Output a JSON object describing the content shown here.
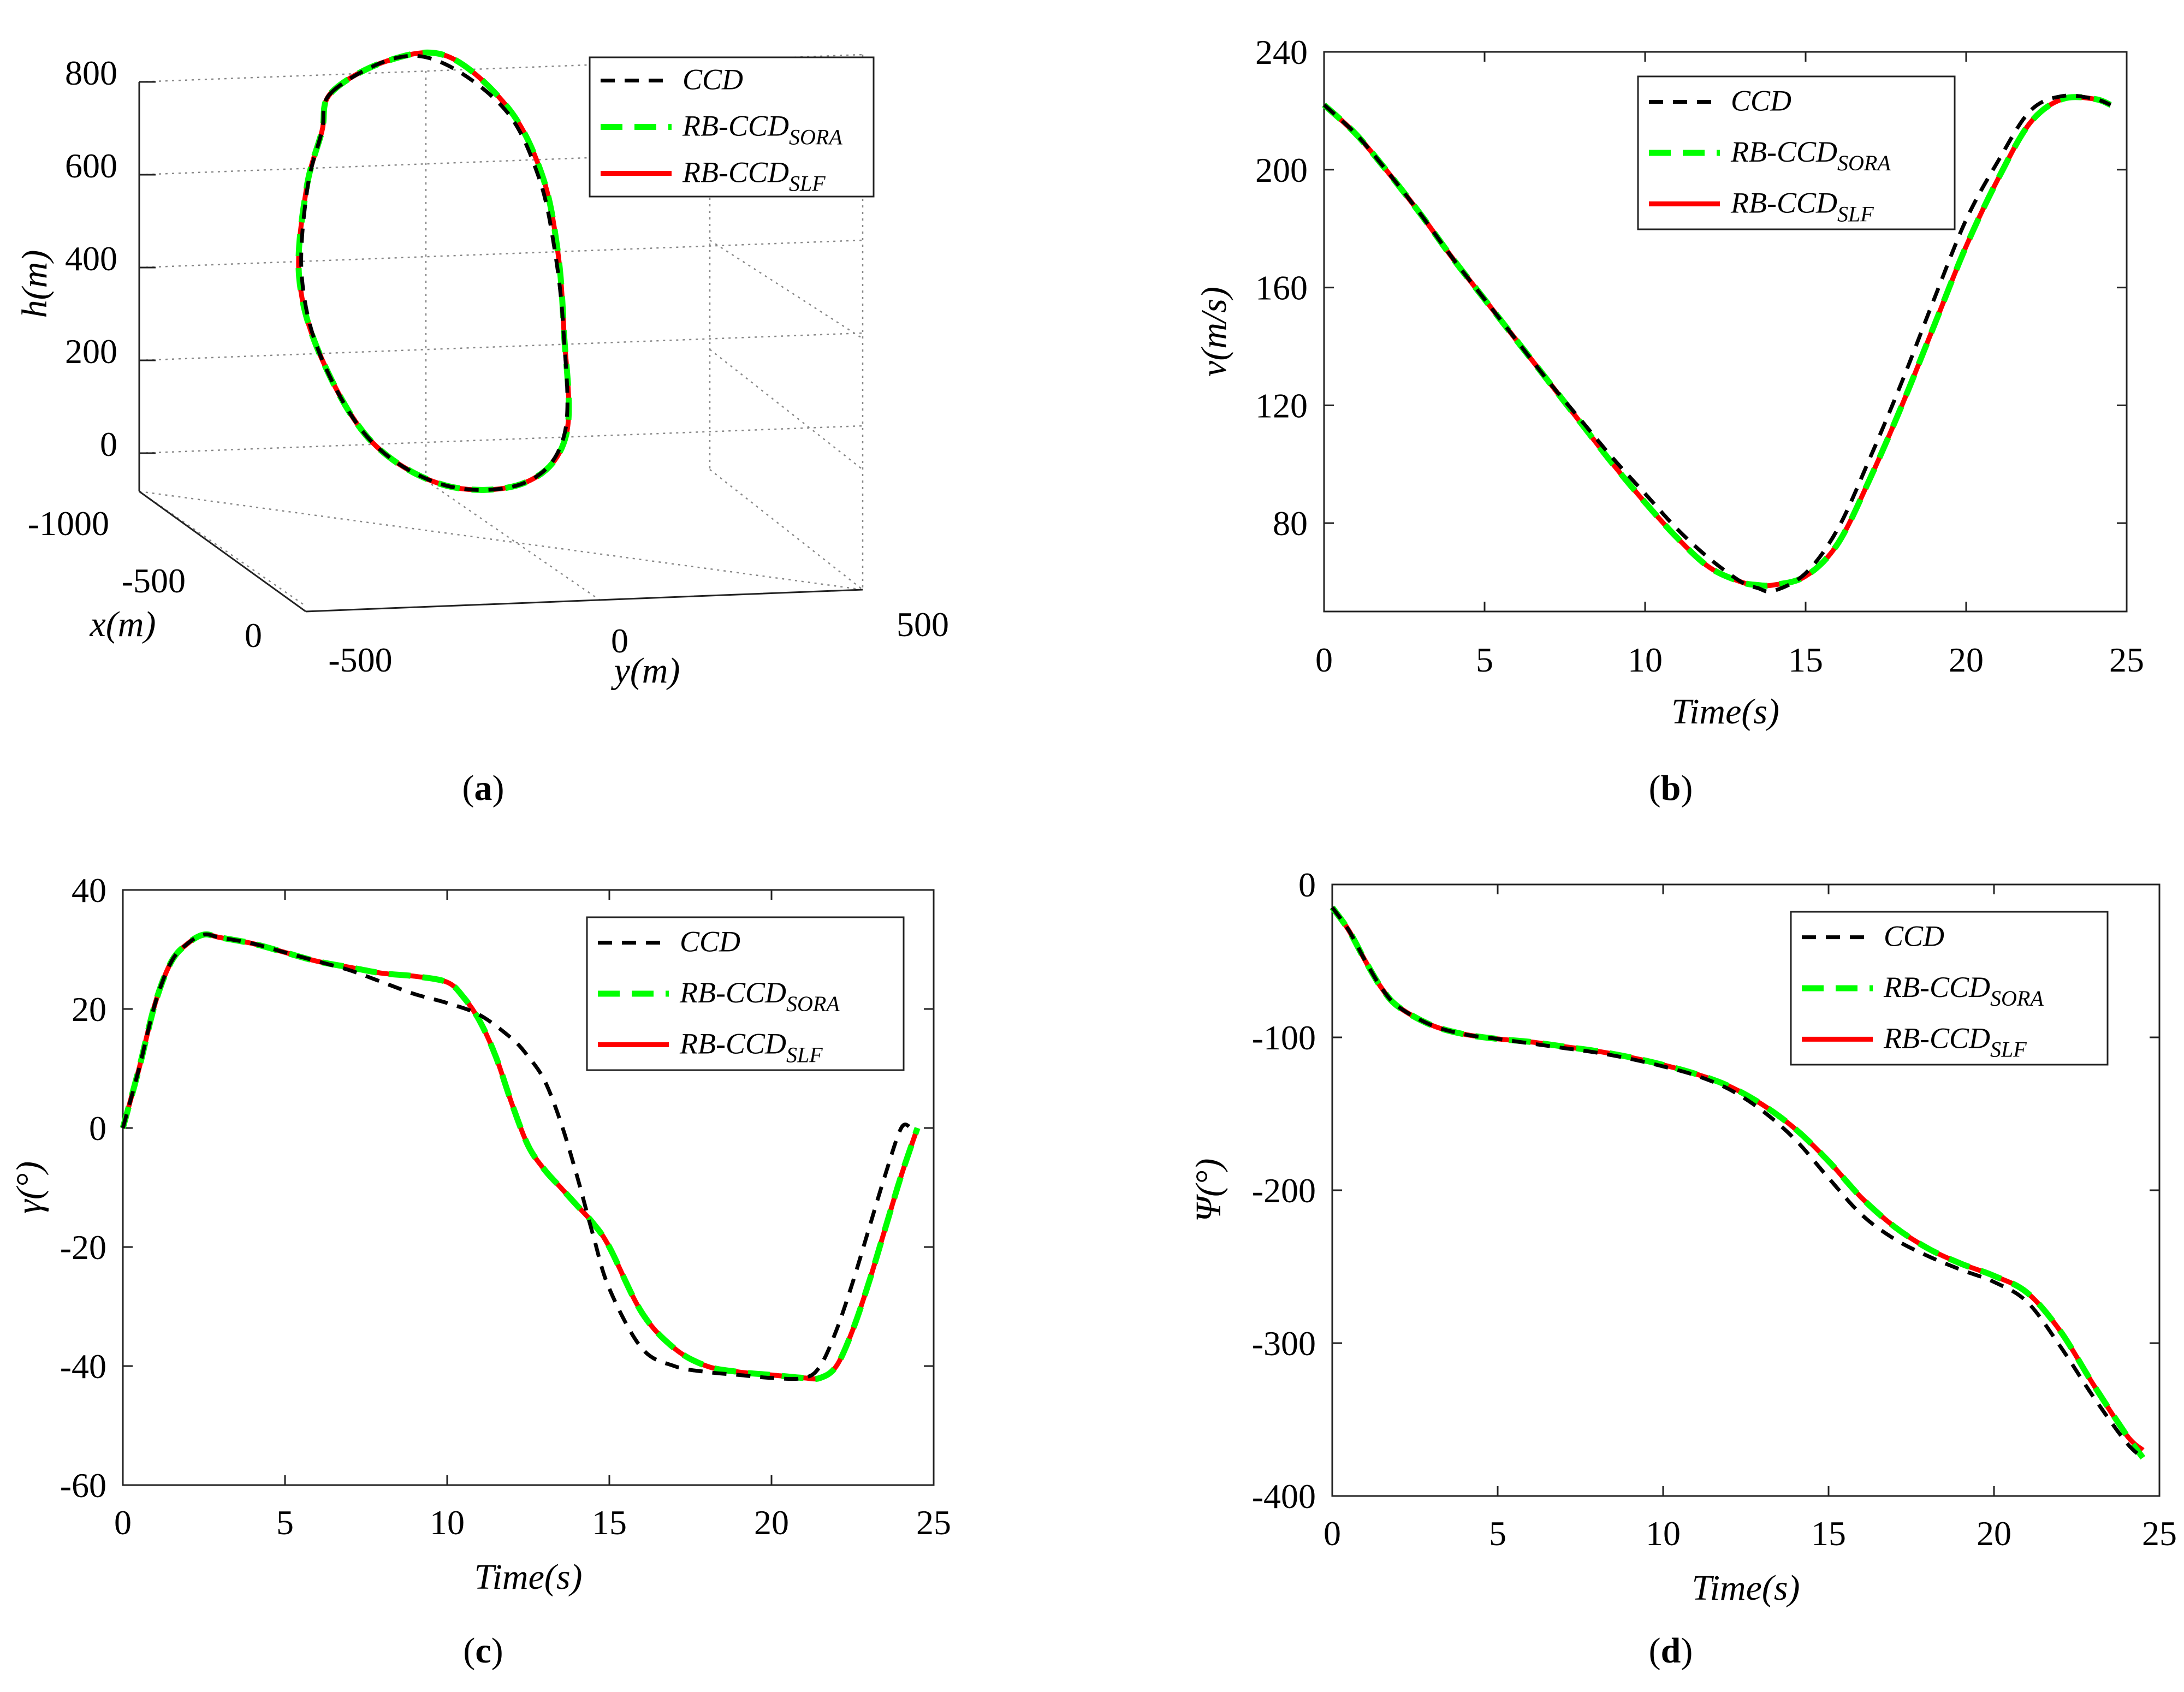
{
  "legend": {
    "ccd": "CCD",
    "sora_main": "RB-CCD",
    "sora_sub": "SORA",
    "slf_main": "RB-CCD",
    "slf_sub": "SLF"
  },
  "colors": {
    "ccd": "#000000",
    "sora": "#00ff00",
    "slf": "#ff0000"
  },
  "captions": {
    "a": "a",
    "b": "b",
    "c": "c",
    "d": "d"
  },
  "chart_data": [
    {
      "id": "a",
      "type": "line",
      "title": "",
      "projection": "3d",
      "xlabel": "x(m)",
      "ylabel": "y(m)",
      "zlabel": "h(m)",
      "x_ticks": [
        "-1000",
        "-500",
        "0"
      ],
      "y_ticks": [
        "-500",
        "0",
        "500"
      ],
      "z_ticks": [
        "800",
        "600",
        "400",
        "200",
        "0"
      ],
      "xlim": [
        -1000,
        0
      ],
      "ylim": [
        -500,
        500
      ],
      "zlim": [
        -100,
        800
      ],
      "series": [
        {
          "name": "CCD",
          "key": "ccd",
          "points": [
            [
              -310,
              -430,
              720
            ],
            [
              -420,
              -280,
              760
            ],
            [
              -470,
              -170,
              730
            ],
            [
              -560,
              -30,
              600
            ],
            [
              -660,
              60,
              430
            ],
            [
              -730,
              110,
              260
            ],
            [
              -740,
              130,
              80
            ],
            [
              -600,
              90,
              -110
            ],
            [
              -440,
              -30,
              -170
            ],
            [
              -360,
              -200,
              -150
            ],
            [
              -320,
              -350,
              -40
            ],
            [
              -300,
              -450,
              150
            ],
            [
              -290,
              -490,
              330
            ],
            [
              -290,
              -480,
              520
            ],
            [
              -300,
              -450,
              640
            ],
            [
              -310,
              -430,
              720
            ]
          ]
        },
        {
          "name": "RB-CCD_SORA",
          "key": "sora",
          "points": [
            [
              -310,
              -430,
              720
            ],
            [
              -400,
              -300,
              760
            ],
            [
              -460,
              -170,
              750
            ],
            [
              -550,
              -30,
              610
            ],
            [
              -640,
              60,
              440
            ],
            [
              -710,
              110,
              260
            ],
            [
              -720,
              125,
              80
            ],
            [
              -590,
              90,
              -110
            ],
            [
              -440,
              -30,
              -170
            ],
            [
              -360,
              -200,
              -150
            ],
            [
              -320,
              -350,
              -40
            ],
            [
              -300,
              -450,
              150
            ],
            [
              -290,
              -495,
              330
            ],
            [
              -295,
              -480,
              520
            ],
            [
              -300,
              -450,
              640
            ],
            [
              -310,
              -430,
              720
            ]
          ]
        },
        {
          "name": "RB-CCD_SLF",
          "key": "slf",
          "points": [
            [
              -310,
              -430,
              720
            ],
            [
              -400,
              -300,
              760
            ],
            [
              -460,
              -170,
              750
            ],
            [
              -550,
              -30,
              610
            ],
            [
              -640,
              60,
              440
            ],
            [
              -710,
              110,
              260
            ],
            [
              -720,
              125,
              80
            ],
            [
              -590,
              90,
              -110
            ],
            [
              -440,
              -30,
              -170
            ],
            [
              -360,
              -200,
              -150
            ],
            [
              -320,
              -350,
              -40
            ],
            [
              -300,
              -450,
              150
            ],
            [
              -290,
              -495,
              330
            ],
            [
              -295,
              -480,
              520
            ],
            [
              -300,
              -450,
              640
            ],
            [
              -310,
              -430,
              720
            ]
          ]
        }
      ]
    },
    {
      "id": "b",
      "type": "line",
      "title": "",
      "xlabel": "Time(s)",
      "ylabel": "v(m/s)",
      "xlim": [
        0,
        25
      ],
      "ylim": [
        50,
        240
      ],
      "xticks": [
        0,
        5,
        10,
        15,
        20,
        25
      ],
      "yticks": [
        80,
        120,
        160,
        200,
        240
      ],
      "legend_position": "top-right",
      "series": [
        {
          "name": "CCD",
          "key": "ccd",
          "x": [
            0,
            1,
            2,
            3,
            4,
            5,
            6,
            7,
            8,
            9,
            10,
            11,
            12,
            13,
            13.5,
            14,
            15,
            16,
            17,
            18,
            19,
            20,
            21,
            22,
            23,
            24,
            24.5
          ],
          "y": [
            222,
            212,
            199,
            185,
            170,
            156,
            142,
            128,
            115,
            102,
            90,
            78,
            68,
            60,
            58,
            57,
            63,
            78,
            102,
            128,
            156,
            183,
            203,
            220,
            225,
            224,
            222
          ]
        },
        {
          "name": "RB-CCD_SORA",
          "key": "sora",
          "x": [
            0,
            1,
            2,
            3,
            4,
            5,
            6,
            7,
            8,
            9,
            10,
            11,
            12,
            13,
            13.5,
            14,
            15,
            16,
            17,
            18,
            19,
            20,
            21,
            22,
            23,
            24,
            24.5
          ],
          "y": [
            222,
            212,
            199,
            185,
            170,
            156,
            142,
            128,
            114,
            100,
            87,
            75,
            65,
            60,
            59,
            59,
            62,
            73,
            95,
            120,
            147,
            174,
            197,
            216,
            224,
            224,
            222
          ]
        },
        {
          "name": "RB-CCD_SLF",
          "key": "slf",
          "x": [
            0,
            1,
            2,
            3,
            4,
            5,
            6,
            7,
            8,
            9,
            10,
            11,
            12,
            13,
            13.5,
            14,
            15,
            16,
            17,
            18,
            19,
            20,
            21,
            22,
            23,
            24,
            24.5
          ],
          "y": [
            222,
            212,
            199,
            185,
            170,
            156,
            142,
            128,
            114,
            100,
            87,
            75,
            65,
            60,
            59,
            59,
            62,
            73,
            95,
            120,
            147,
            174,
            197,
            216,
            224,
            224,
            222
          ]
        }
      ]
    },
    {
      "id": "c",
      "type": "line",
      "title": "",
      "xlabel": "Time(s)",
      "ylabel": "γ(°)",
      "xlim": [
        0,
        25
      ],
      "ylim": [
        -60,
        40
      ],
      "xticks": [
        0,
        5,
        10,
        15,
        20,
        25
      ],
      "yticks": [
        -60,
        -40,
        -20,
        0,
        20,
        40
      ],
      "legend_position": "top-right",
      "series": [
        {
          "name": "CCD",
          "key": "ccd",
          "x": [
            0,
            0.5,
            1,
            1.5,
            2,
            2.5,
            3,
            4,
            5,
            6,
            7,
            8,
            9,
            10,
            11,
            12,
            12.5,
            13,
            13.5,
            14,
            14.5,
            15,
            16,
            17,
            18,
            19,
            20,
            21,
            21.5,
            22,
            22.5,
            23,
            23.5,
            24,
            24.3
          ],
          "y": [
            0,
            10,
            21,
            28,
            31,
            32.5,
            32,
            31,
            29.5,
            28,
            26.5,
            24.5,
            22.5,
            21,
            19,
            15,
            12,
            8,
            1,
            -8,
            -18,
            -27,
            -37,
            -40,
            -41,
            -41.5,
            -42,
            -42,
            -40,
            -34,
            -26,
            -17,
            -8,
            0,
            0
          ]
        },
        {
          "name": "RB-CCD_SORA",
          "key": "sora",
          "x": [
            0,
            0.5,
            1,
            1.5,
            2,
            2.5,
            3,
            4,
            5,
            6,
            7,
            8,
            9,
            10,
            10.5,
            11,
            11.5,
            12,
            12.5,
            13,
            13.5,
            14,
            14.5,
            15,
            16,
            17,
            18,
            19,
            20,
            21,
            21.5,
            22,
            22.5,
            23,
            23.5,
            24,
            24.5
          ],
          "y": [
            0,
            10,
            21,
            28,
            31,
            32.5,
            32,
            31,
            29.5,
            28,
            27,
            26,
            25.5,
            24.5,
            22,
            18,
            12,
            4,
            -3,
            -7,
            -10,
            -13,
            -16,
            -20,
            -31,
            -37,
            -40,
            -41,
            -41.5,
            -42,
            -42,
            -40,
            -34,
            -26,
            -17,
            -8,
            0
          ]
        },
        {
          "name": "RB-CCD_SLF",
          "key": "slf",
          "x": [
            0,
            0.5,
            1,
            1.5,
            2,
            2.5,
            3,
            4,
            5,
            6,
            7,
            8,
            9,
            10,
            10.5,
            11,
            11.5,
            12,
            12.5,
            13,
            13.5,
            14,
            14.5,
            15,
            16,
            17,
            18,
            19,
            20,
            21,
            21.5,
            22,
            22.5,
            23,
            23.5,
            24,
            24.5
          ],
          "y": [
            0,
            10,
            21,
            28,
            31,
            32.5,
            32,
            31,
            29.5,
            28,
            27,
            26,
            25.5,
            24.5,
            22,
            18,
            12,
            4,
            -3,
            -7,
            -10,
            -13,
            -16,
            -20,
            -31,
            -37,
            -40,
            -41,
            -41.5,
            -42,
            -42,
            -40,
            -34,
            -26,
            -17,
            -8,
            0
          ]
        }
      ]
    },
    {
      "id": "d",
      "type": "line",
      "title": "",
      "xlabel": "Time(s)",
      "ylabel": "Ψ(°)",
      "xlim": [
        0,
        25
      ],
      "ylim": [
        -400,
        0
      ],
      "xticks": [
        0,
        5,
        10,
        15,
        20,
        25
      ],
      "yticks": [
        -400,
        -300,
        -200,
        -100,
        0
      ],
      "legend_position": "top-right",
      "series": [
        {
          "name": "CCD",
          "key": "ccd",
          "x": [
            0,
            0.5,
            1,
            1.5,
            2,
            3,
            4,
            5,
            6,
            7,
            8,
            9,
            10,
            11,
            12,
            13,
            14,
            15,
            16,
            17,
            18,
            19,
            20,
            21,
            22,
            23,
            24,
            24.5
          ],
          "y": [
            -15,
            -30,
            -50,
            -68,
            -80,
            -92,
            -98,
            -101,
            -104,
            -107,
            -110,
            -114,
            -119,
            -125,
            -134,
            -148,
            -167,
            -192,
            -216,
            -232,
            -243,
            -252,
            -260,
            -273,
            -302,
            -335,
            -365,
            -375
          ]
        },
        {
          "name": "RB-CCD_SORA",
          "key": "sora",
          "x": [
            0,
            0.5,
            1,
            1.5,
            2,
            3,
            4,
            5,
            6,
            7,
            8,
            9,
            10,
            11,
            12,
            13,
            14,
            15,
            16,
            17,
            18,
            19,
            20,
            21,
            22,
            23,
            24,
            24.5
          ],
          "y": [
            -15,
            -30,
            -50,
            -68,
            -80,
            -92,
            -98,
            -101,
            -103,
            -106,
            -109,
            -113,
            -118,
            -124,
            -132,
            -144,
            -160,
            -181,
            -205,
            -224,
            -238,
            -248,
            -256,
            -267,
            -292,
            -327,
            -360,
            -375
          ]
        },
        {
          "name": "RB-CCD_SLF",
          "key": "slf",
          "x": [
            0,
            0.5,
            1,
            1.5,
            2,
            3,
            4,
            5,
            6,
            7,
            8,
            9,
            10,
            11,
            12,
            13,
            14,
            15,
            16,
            17,
            18,
            19,
            20,
            21,
            22,
            23,
            24,
            24.5
          ],
          "y": [
            -15,
            -30,
            -50,
            -68,
            -80,
            -92,
            -98,
            -101,
            -103,
            -106,
            -109,
            -113,
            -118,
            -124,
            -132,
            -144,
            -160,
            -181,
            -205,
            -224,
            -238,
            -248,
            -256,
            -267,
            -292,
            -327,
            -360,
            -370
          ]
        }
      ]
    }
  ]
}
